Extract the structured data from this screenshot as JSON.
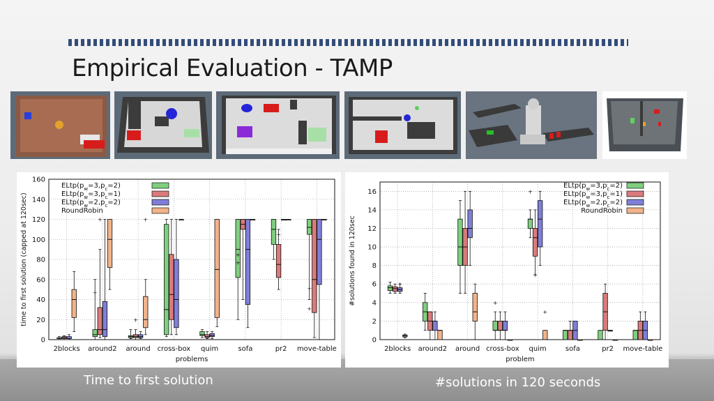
{
  "slide": {
    "title": "Empirical Evaluation - TAMP",
    "caption_left": "Time to first solution",
    "caption_right": "#solutions in 120 seconds"
  },
  "thumbnails": [
    {
      "name": "thumb-2blocks"
    },
    {
      "name": "thumb-around2"
    },
    {
      "name": "thumb-around"
    },
    {
      "name": "thumb-cross-box"
    },
    {
      "name": "thumb-pr2"
    },
    {
      "name": "thumb-move-table"
    }
  ],
  "chart_data": [
    {
      "type": "box",
      "xlabel": "problems",
      "ylabel": "time to first solution (capped at 120sec)",
      "ylim": [
        0,
        160
      ],
      "yticks": [
        0,
        20,
        40,
        60,
        80,
        100,
        120,
        140,
        160
      ],
      "grid": true,
      "legend_position": "top-left",
      "categories": [
        "2blocks",
        "around2",
        "around",
        "cross-box",
        "quim",
        "sofa",
        "pr2",
        "move-table"
      ],
      "series": [
        {
          "legend": "ELtp(p_w=3,p_c=2)",
          "color": "#7fcf7f",
          "boxes": [
            [
              0,
              1,
              1,
              2,
              3
            ],
            [
              0,
              3,
              5,
              10,
              60
            ],
            [
              1,
              2,
              3,
              4,
              10
            ],
            [
              3,
              5,
              30,
              115,
              120
            ],
            [
              2,
              4,
              5,
              8,
              10
            ],
            [
              20,
              62,
              90,
              120,
              120
            ],
            [
              80,
              95,
              110,
              120,
              120
            ],
            [
              40,
              105,
              112,
              120,
              120
            ]
          ],
          "outliers": [
            [],
            [
              47
            ],
            [],
            [],
            [],
            [
              85,
              77
            ],
            [],
            [
              51,
              31
            ]
          ]
        },
        {
          "legend": "ELtp(p_w=3,p_c=1)",
          "color": "#d97b7b",
          "boxes": [
            [
              0,
              1,
              2,
              3,
              4
            ],
            [
              2,
              5,
              10,
              32,
              90
            ],
            [
              0,
              2,
              3,
              5,
              10
            ],
            [
              5,
              20,
              45,
              85,
              120
            ],
            [
              1,
              2,
              3,
              5,
              8
            ],
            [
              40,
              110,
              115,
              120,
              120
            ],
            [
              50,
              62,
              75,
              95,
              110
            ],
            [
              2,
              27,
              60,
              120,
              120
            ]
          ],
          "outliers": [
            [],
            [
              120
            ],
            [
              20
            ],
            [],
            [],
            [],
            [
              105
            ],
            []
          ]
        },
        {
          "legend": "ELtp(p_w=2,p_c=2)",
          "color": "#7f7fd9",
          "boxes": [
            [
              0,
              1,
              1,
              3,
              5
            ],
            [
              0,
              3,
              10,
              38,
              120
            ],
            [
              1,
              2,
              3,
              5,
              8
            ],
            [
              5,
              12,
              40,
              80,
              120
            ],
            [
              1,
              3,
              4,
              6,
              8
            ],
            [
              12,
              35,
              90,
              120,
              120
            ],
            [
              120,
              120,
              120,
              120,
              120
            ],
            [
              0,
              55,
              100,
              120,
              120
            ]
          ],
          "outliers": [
            [],
            [],
            [],
            [],
            [],
            [],
            [],
            []
          ]
        },
        {
          "legend": "RoundRobin",
          "color": "#f2b38a",
          "boxes": [
            [
              8,
              22,
              40,
              50,
              68
            ],
            [
              50,
              72,
              100,
              120,
              120
            ],
            [
              5,
              12,
              20,
              43,
              60
            ],
            [
              120,
              120,
              120,
              120,
              120
            ],
            [
              13,
              22,
              70,
              120,
              120
            ],
            [
              120,
              120,
              120,
              120,
              120
            ],
            [
              120,
              120,
              120,
              120,
              120
            ],
            [
              120,
              120,
              120,
              120,
              120
            ]
          ],
          "outliers": [
            [],
            [],
            [
              120
            ],
            [],
            [],
            [],
            [],
            []
          ]
        }
      ]
    },
    {
      "type": "box",
      "xlabel": "problem",
      "ylabel": "#solutions found in 120sec",
      "ylim": [
        0,
        17
      ],
      "yticks": [
        0,
        2,
        4,
        6,
        8,
        10,
        12,
        14,
        16
      ],
      "grid": true,
      "legend_position": "top-right",
      "categories": [
        "2blocks",
        "around2",
        "around",
        "cross-box",
        "quim",
        "sofa",
        "pr2",
        "move-table"
      ],
      "series": [
        {
          "legend": "ELtp(p_w=3,p_c=2)",
          "color": "#7fcf7f",
          "boxes": [
            [
              5,
              5.3,
              5.6,
              5.8,
              6.2
            ],
            [
              1,
              2,
              3,
              4,
              5
            ],
            [
              5,
              8,
              10,
              13,
              15
            ],
            [
              0,
              1,
              1,
              2,
              3
            ],
            [
              11,
              12,
              13,
              13,
              14
            ],
            [
              0,
              0,
              1,
              1,
              1
            ],
            [
              0,
              0,
              0,
              1,
              1
            ],
            [
              0,
              0,
              1,
              1,
              1
            ]
          ],
          "outliers": [
            [],
            [],
            [],
            [
              4
            ],
            [
              16
            ],
            [],
            [],
            []
          ]
        },
        {
          "legend": "ELtp(p_w=3,p_c=1)",
          "color": "#d97b7b",
          "boxes": [
            [
              5,
              5.2,
              5.5,
              5.7,
              6
            ],
            [
              0,
              1,
              2,
              3,
              3
            ],
            [
              5,
              8,
              10,
              12,
              16
            ],
            [
              0,
              1,
              1,
              2,
              3
            ],
            [
              7,
              9,
              11,
              12,
              14
            ],
            [
              0,
              0,
              1,
              1,
              2
            ],
            [
              0,
              1,
              3,
              5,
              6
            ],
            [
              0,
              0,
              1,
              2,
              3
            ]
          ],
          "outliers": [
            [],
            [],
            [],
            [],
            [
              7
            ],
            [],
            [],
            []
          ]
        },
        {
          "legend": "ELtp(p_w=2,p_c=2)",
          "color": "#7f7fd9",
          "boxes": [
            [
              5,
              5.2,
              5.4,
              5.6,
              6
            ],
            [
              0,
              1,
              2,
              2,
              3
            ],
            [
              8,
              11,
              12,
              14,
              16
            ],
            [
              0,
              1,
              1,
              2,
              3
            ],
            [
              8,
              10,
              13,
              15,
              16
            ],
            [
              0,
              0,
              1,
              2,
              2
            ],
            [
              1,
              1,
              1,
              1,
              1
            ],
            [
              0,
              0,
              1,
              2,
              3
            ]
          ],
          "outliers": [
            [
              6
            ],
            [],
            [],
            [],
            [],
            [],
            [],
            []
          ]
        },
        {
          "legend": "RoundRobin",
          "color": "#f2b38a",
          "boxes": [
            [
              0.2,
              0.3,
              0.4,
              0.5,
              0.6
            ],
            [
              0,
              0,
              1,
              1,
              1
            ],
            [
              0,
              2,
              3,
              5,
              6
            ],
            [
              0,
              0,
              0,
              0,
              0
            ],
            [
              0,
              0,
              0,
              1,
              1
            ],
            [
              0,
              0,
              0,
              0,
              0
            ],
            [
              0,
              0,
              0,
              0,
              0
            ],
            [
              0,
              0,
              0,
              0,
              0
            ]
          ],
          "outliers": [
            [],
            [],
            [],
            [],
            [
              3
            ],
            [],
            [],
            []
          ]
        }
      ]
    }
  ]
}
